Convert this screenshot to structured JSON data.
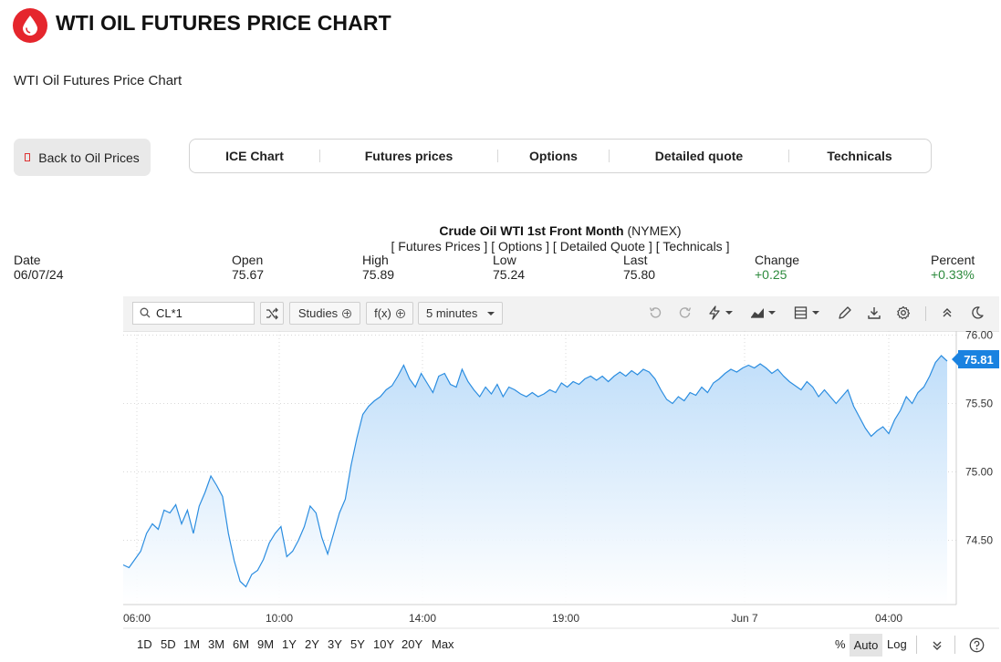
{
  "header": {
    "title": "WTI OIL FUTURES PRICE CHART",
    "subtitle": "WTI Oil Futures Price Chart",
    "logo_icon": "oil-drop-icon",
    "logo_color": "#e5262d"
  },
  "back_button": {
    "label": "Back to Oil Prices"
  },
  "tabs": [
    {
      "label": "ICE Chart"
    },
    {
      "label": "Futures prices"
    },
    {
      "label": "Options"
    },
    {
      "label": "Detailed quote"
    },
    {
      "label": "Technicals"
    }
  ],
  "instrument": {
    "name": "Crude Oil WTI 1st Front Month",
    "exchange": "(NYMEX)",
    "links": [
      "Futures Prices",
      "Options",
      "Detailed Quote",
      "Technicals"
    ]
  },
  "quote": {
    "date_label": "Date",
    "date": "06/07/24",
    "open_label": "Open",
    "open": "75.67",
    "high_label": "High",
    "high": "75.89",
    "low_label": "Low",
    "low": "75.24",
    "last_label": "Last",
    "last": "75.80",
    "change_label": "Change",
    "change": "+0.25",
    "percent_label": "Percent",
    "percent": "+0.33%",
    "positive_color": "#2e8b3e"
  },
  "toolbar": {
    "symbol": "CL*1",
    "studies_label": "Studies",
    "fx_label": "f(x)",
    "interval": "5 minutes",
    "icons": [
      "undo-icon",
      "redo-icon",
      "lightning-icon",
      "chart-type-icon",
      "layout-icon",
      "pencil-icon",
      "download-icon",
      "gear-icon",
      "collapse-up-icon",
      "dark-mode-icon"
    ]
  },
  "chart_data": {
    "type": "area",
    "x_ticks": [
      "06:00",
      "10:00",
      "14:00",
      "19:00",
      "Jun 7",
      "04:00"
    ],
    "y_ticks": [
      "76.00",
      "75.50",
      "75.00",
      "74.50"
    ],
    "ylim": [
      74.03,
      76.03
    ],
    "last_price": "75.81",
    "line_color": "#2b8de0",
    "fill_color": "#cfe5fb",
    "grid": "dotted",
    "points": [
      [
        0,
        74.32
      ],
      [
        1,
        74.3
      ],
      [
        2,
        74.36
      ],
      [
        3,
        74.42
      ],
      [
        4,
        74.55
      ],
      [
        5,
        74.62
      ],
      [
        6,
        74.58
      ],
      [
        7,
        74.72
      ],
      [
        8,
        74.7
      ],
      [
        9,
        74.76
      ],
      [
        10,
        74.62
      ],
      [
        11,
        74.72
      ],
      [
        12,
        74.55
      ],
      [
        13,
        74.75
      ],
      [
        14,
        74.85
      ],
      [
        15,
        74.97
      ],
      [
        16,
        74.9
      ],
      [
        17,
        74.82
      ],
      [
        18,
        74.55
      ],
      [
        19,
        74.35
      ],
      [
        20,
        74.2
      ],
      [
        21,
        74.16
      ],
      [
        22,
        74.25
      ],
      [
        23,
        74.28
      ],
      [
        24,
        74.36
      ],
      [
        25,
        74.48
      ],
      [
        26,
        74.55
      ],
      [
        27,
        74.6
      ],
      [
        28,
        74.38
      ],
      [
        29,
        74.42
      ],
      [
        30,
        74.5
      ],
      [
        31,
        74.6
      ],
      [
        32,
        74.75
      ],
      [
        33,
        74.7
      ],
      [
        34,
        74.52
      ],
      [
        35,
        74.4
      ],
      [
        36,
        74.55
      ],
      [
        37,
        74.7
      ],
      [
        38,
        74.8
      ],
      [
        39,
        75.05
      ],
      [
        40,
        75.25
      ],
      [
        41,
        75.42
      ],
      [
        42,
        75.48
      ],
      [
        43,
        75.52
      ],
      [
        44,
        75.55
      ],
      [
        45,
        75.6
      ],
      [
        46,
        75.63
      ],
      [
        47,
        75.7
      ],
      [
        48,
        75.78
      ],
      [
        49,
        75.68
      ],
      [
        50,
        75.62
      ],
      [
        51,
        75.72
      ],
      [
        52,
        75.65
      ],
      [
        53,
        75.58
      ],
      [
        54,
        75.7
      ],
      [
        55,
        75.72
      ],
      [
        56,
        75.64
      ],
      [
        57,
        75.62
      ],
      [
        58,
        75.75
      ],
      [
        59,
        75.66
      ],
      [
        60,
        75.6
      ],
      [
        61,
        75.55
      ],
      [
        62,
        75.62
      ],
      [
        63,
        75.57
      ],
      [
        64,
        75.64
      ],
      [
        65,
        75.55
      ],
      [
        66,
        75.62
      ],
      [
        67,
        75.6
      ],
      [
        68,
        75.57
      ],
      [
        69,
        75.55
      ],
      [
        70,
        75.58
      ],
      [
        71,
        75.55
      ],
      [
        72,
        75.57
      ],
      [
        73,
        75.6
      ],
      [
        74,
        75.58
      ],
      [
        75,
        75.65
      ],
      [
        76,
        75.62
      ],
      [
        77,
        75.66
      ],
      [
        78,
        75.64
      ],
      [
        79,
        75.68
      ],
      [
        80,
        75.7
      ],
      [
        81,
        75.67
      ],
      [
        82,
        75.7
      ],
      [
        83,
        75.66
      ],
      [
        84,
        75.7
      ],
      [
        85,
        75.73
      ],
      [
        86,
        75.7
      ],
      [
        87,
        75.74
      ],
      [
        88,
        75.71
      ],
      [
        89,
        75.75
      ],
      [
        90,
        75.73
      ],
      [
        91,
        75.68
      ],
      [
        92,
        75.6
      ],
      [
        93,
        75.53
      ],
      [
        94,
        75.5
      ],
      [
        95,
        75.55
      ],
      [
        96,
        75.52
      ],
      [
        97,
        75.58
      ],
      [
        98,
        75.56
      ],
      [
        99,
        75.62
      ],
      [
        100,
        75.58
      ],
      [
        101,
        75.65
      ],
      [
        102,
        75.68
      ],
      [
        103,
        75.72
      ],
      [
        104,
        75.75
      ],
      [
        105,
        75.73
      ],
      [
        106,
        75.76
      ],
      [
        107,
        75.78
      ],
      [
        108,
        75.76
      ],
      [
        109,
        75.79
      ],
      [
        110,
        75.76
      ],
      [
        111,
        75.72
      ],
      [
        112,
        75.75
      ],
      [
        113,
        75.7
      ],
      [
        114,
        75.66
      ],
      [
        115,
        75.63
      ],
      [
        116,
        75.6
      ],
      [
        117,
        75.66
      ],
      [
        118,
        75.62
      ],
      [
        119,
        75.55
      ],
      [
        120,
        75.6
      ],
      [
        121,
        75.55
      ],
      [
        122,
        75.5
      ],
      [
        123,
        75.55
      ],
      [
        124,
        75.6
      ],
      [
        125,
        75.48
      ],
      [
        126,
        75.4
      ],
      [
        127,
        75.32
      ],
      [
        128,
        75.26
      ],
      [
        129,
        75.3
      ],
      [
        130,
        75.33
      ],
      [
        131,
        75.28
      ],
      [
        132,
        75.38
      ],
      [
        133,
        75.45
      ],
      [
        134,
        75.55
      ],
      [
        135,
        75.5
      ],
      [
        136,
        75.58
      ],
      [
        137,
        75.62
      ],
      [
        138,
        75.7
      ],
      [
        139,
        75.8
      ],
      [
        140,
        75.85
      ],
      [
        141,
        75.81
      ]
    ]
  },
  "bottom_bar": {
    "ranges": [
      "1D",
      "5D",
      "1M",
      "3M",
      "6M",
      "9M",
      "1Y",
      "2Y",
      "3Y",
      "5Y",
      "10Y",
      "20Y",
      "Max"
    ],
    "percent_label": "%",
    "auto_label": "Auto",
    "log_label": "Log",
    "icons": [
      "double-chevron-down-icon",
      "help-icon"
    ]
  }
}
